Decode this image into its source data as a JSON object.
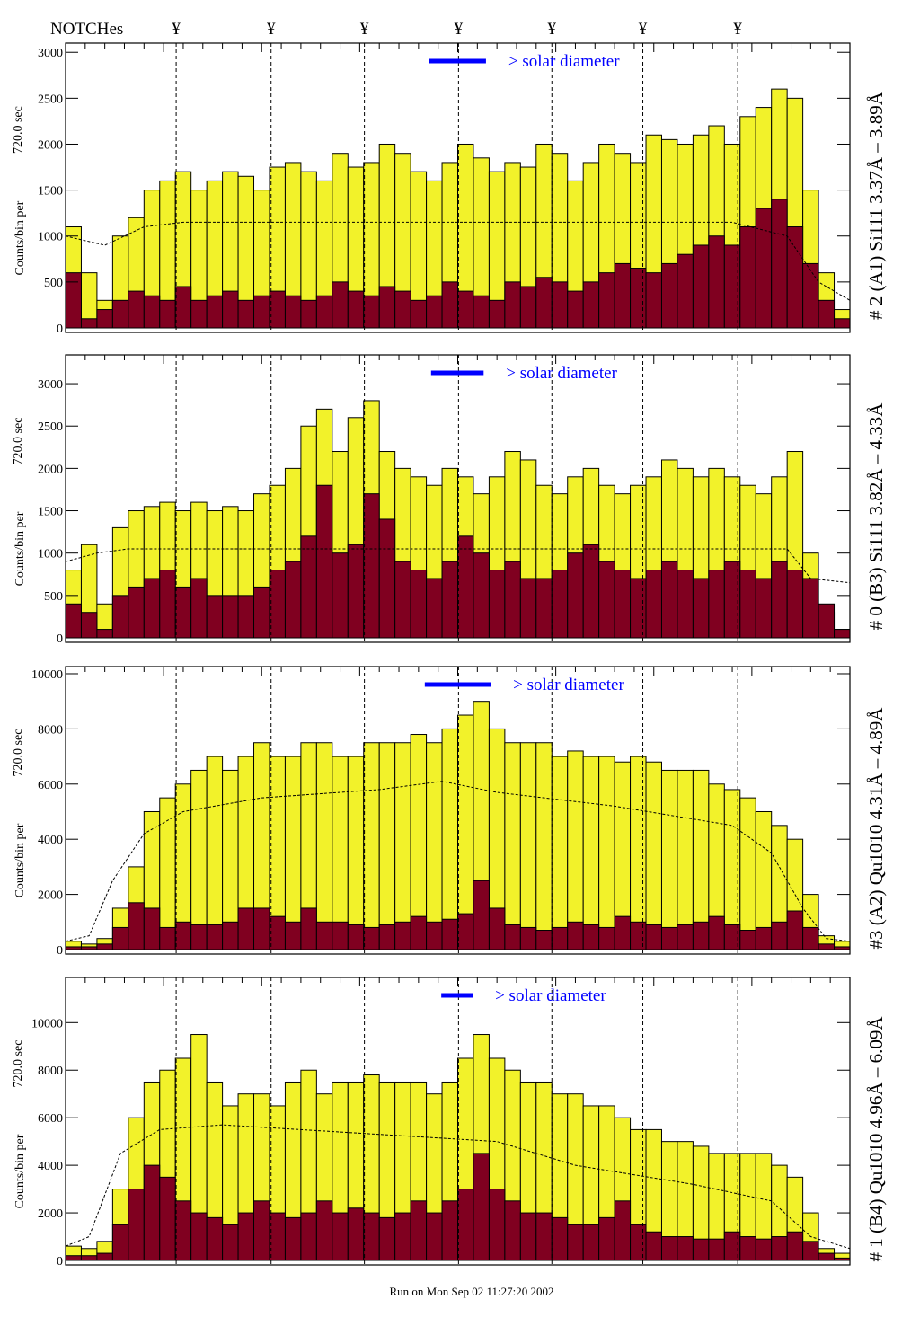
{
  "header": {
    "notches_label": "NOTCHes",
    "notch_symbol": "¥"
  },
  "footer": {
    "run_label": "Run on Mon Sep 02 11:27:20 2002"
  },
  "colors": {
    "yellow": "#f2f22a",
    "maroon": "#800020",
    "legend": "#0000ff"
  },
  "chart_data": [
    {
      "type": "bar",
      "title": "# 2 (A1) Si111  3.37Å – 3.89Å",
      "ylabel": "Counts/bin per",
      "ylabel2": "720.0 sec",
      "legend": "> solar diameter",
      "solar_diameter": [
        46.3,
        53.6
      ],
      "xlim": [
        0,
        100
      ],
      "ylim": [
        0,
        3100
      ],
      "yticks": [
        "0",
        "500",
        "1000",
        "1500",
        "2000",
        "2500",
        "3000"
      ],
      "ytick_values": [
        0,
        500,
        1000,
        1500,
        2000,
        2500,
        3000
      ],
      "notches": [
        14.1,
        26.2,
        38.1,
        50.1,
        62.0,
        73.6,
        85.7
      ],
      "series": [
        {
          "name": "total",
          "values": [
            1100,
            600,
            300,
            1000,
            1200,
            1500,
            1600,
            1700,
            1500,
            1600,
            1700,
            1650,
            1500,
            1750,
            1800,
            1700,
            1600,
            1900,
            1750,
            1800,
            2000,
            1900,
            1700,
            1600,
            1800,
            2000,
            1850,
            1700,
            1800,
            1750,
            2000,
            1900,
            1600,
            1800,
            2000,
            1900,
            1800,
            2100,
            2050,
            2000,
            2100,
            2200,
            2000,
            2300,
            2400,
            2600,
            2500,
            1500,
            600,
            200
          ]
        },
        {
          "name": "background",
          "values": [
            600,
            100,
            200,
            300,
            400,
            350,
            300,
            450,
            300,
            350,
            400,
            300,
            350,
            400,
            350,
            300,
            350,
            500,
            400,
            350,
            450,
            400,
            300,
            350,
            500,
            400,
            350,
            300,
            500,
            450,
            550,
            500,
            400,
            500,
            600,
            700,
            650,
            600,
            700,
            800,
            900,
            1000,
            900,
            1100,
            1300,
            1400,
            1100,
            700,
            300,
            100
          ]
        }
      ],
      "mean_curve": [
        [
          0,
          1000
        ],
        [
          5,
          900
        ],
        [
          10,
          1100
        ],
        [
          15,
          1150
        ],
        [
          85,
          1150
        ],
        [
          92,
          1000
        ],
        [
          96,
          500
        ],
        [
          100,
          300
        ]
      ]
    },
    {
      "type": "bar",
      "title": "# 0 (B3) Si111  3.82Å – 4.33Å",
      "ylabel": "Counts/bin per",
      "ylabel2": "720.0 sec",
      "legend": "> solar diameter",
      "solar_diameter": [
        46.6,
        53.3
      ],
      "xlim": [
        0,
        100
      ],
      "ylim": [
        0,
        3340
      ],
      "yticks": [
        "0",
        "500",
        "1000",
        "1500",
        "2000",
        "2500",
        "3000"
      ],
      "ytick_values": [
        0,
        500,
        1000,
        1500,
        2000,
        2500,
        3000
      ],
      "notches": [
        14.1,
        26.2,
        38.1,
        50.1,
        62.0,
        73.6,
        85.7
      ],
      "series": [
        {
          "name": "total",
          "values": [
            800,
            1100,
            400,
            1300,
            1500,
            1550,
            1600,
            1500,
            1600,
            1500,
            1550,
            1500,
            1700,
            1800,
            2000,
            2500,
            2700,
            2200,
            2600,
            2800,
            2200,
            2000,
            1900,
            1800,
            2000,
            1900,
            1700,
            1900,
            2200,
            2100,
            1800,
            1700,
            1900,
            2000,
            1800,
            1700,
            1800,
            1900,
            2100,
            2000,
            1900,
            2000,
            1900,
            1800,
            1700,
            1900,
            2200,
            1000,
            300,
            100
          ]
        },
        {
          "name": "background",
          "values": [
            400,
            300,
            100,
            500,
            600,
            700,
            800,
            600,
            700,
            500,
            500,
            500,
            600,
            800,
            900,
            1200,
            1800,
            1000,
            1100,
            1700,
            1400,
            900,
            800,
            700,
            900,
            1200,
            1000,
            800,
            900,
            700,
            700,
            800,
            1000,
            1100,
            900,
            800,
            700,
            800,
            900,
            800,
            700,
            800,
            900,
            800,
            700,
            900,
            800,
            700,
            400,
            100
          ]
        }
      ],
      "mean_curve": [
        [
          0,
          900
        ],
        [
          4,
          1000
        ],
        [
          8,
          1050
        ],
        [
          92,
          1050
        ],
        [
          95,
          700
        ],
        [
          100,
          650
        ]
      ]
    },
    {
      "type": "bar",
      "title": "#3 (A2) Qu1010  4.31Å – 4.89Å",
      "ylabel": "Counts/bin per",
      "ylabel2": "720.0 sec",
      "legend": "> solar diameter",
      "solar_diameter": [
        45.8,
        54.2
      ],
      "xlim": [
        0,
        100
      ],
      "ylim": [
        0,
        10260
      ],
      "yticks": [
        "0",
        "2000",
        "4000",
        "6000",
        "8000",
        "10000"
      ],
      "ytick_values": [
        0,
        2000,
        4000,
        6000,
        8000,
        10000
      ],
      "notches": [
        14.1,
        26.2,
        38.1,
        50.1,
        62.0,
        73.6,
        85.7
      ],
      "series": [
        {
          "name": "total",
          "values": [
            300,
            200,
            400,
            1500,
            3000,
            5000,
            5500,
            6000,
            6500,
            7000,
            6500,
            7000,
            7500,
            7000,
            7000,
            7500,
            7500,
            7000,
            7000,
            7500,
            7500,
            7500,
            7800,
            7500,
            8000,
            8500,
            9000,
            8000,
            7500,
            7500,
            7500,
            7000,
            7200,
            7000,
            7000,
            6800,
            7000,
            6800,
            6500,
            6500,
            6500,
            6000,
            5800,
            5500,
            5000,
            4500,
            4000,
            2000,
            500,
            300
          ]
        },
        {
          "name": "background",
          "values": [
            100,
            100,
            200,
            800,
            1700,
            1500,
            800,
            1000,
            900,
            900,
            1000,
            1500,
            1500,
            1200,
            1000,
            1500,
            1000,
            1000,
            900,
            800,
            900,
            1000,
            1200,
            1000,
            1100,
            1300,
            2500,
            1500,
            900,
            800,
            700,
            800,
            1000,
            900,
            800,
            1200,
            1000,
            900,
            800,
            900,
            1000,
            1200,
            900,
            700,
            800,
            1000,
            1400,
            800,
            200,
            100
          ]
        }
      ],
      "mean_curve": [
        [
          0,
          300
        ],
        [
          3,
          500
        ],
        [
          6,
          2500
        ],
        [
          10,
          4200
        ],
        [
          15,
          5000
        ],
        [
          25,
          5500
        ],
        [
          40,
          5800
        ],
        [
          48,
          6100
        ],
        [
          55,
          5700
        ],
        [
          70,
          5200
        ],
        [
          85,
          4500
        ],
        [
          90,
          3500
        ],
        [
          94,
          1500
        ],
        [
          97,
          400
        ],
        [
          100,
          300
        ]
      ]
    },
    {
      "type": "bar",
      "title": "# 1 (B4) Qu1010 4.96Å – 6.09Å",
      "ylabel": "Counts/bin per",
      "ylabel2": "720.0 sec",
      "legend": "> solar diameter",
      "solar_diameter": [
        47.9,
        51.9
      ],
      "xlim": [
        0,
        100
      ],
      "ylim": [
        0,
        11900
      ],
      "yticks": [
        "0",
        "2000",
        "4000",
        "6000",
        "8000",
        "10000"
      ],
      "ytick_values": [
        0,
        2000,
        4000,
        6000,
        8000,
        10000
      ],
      "notches": [
        14.1,
        26.2,
        38.1,
        50.1,
        62.0,
        73.6,
        85.7
      ],
      "series": [
        {
          "name": "total",
          "values": [
            600,
            500,
            800,
            3000,
            6000,
            7500,
            8000,
            8500,
            9500,
            7500,
            6500,
            7000,
            7000,
            6500,
            7500,
            8000,
            7000,
            7500,
            7500,
            7800,
            7500,
            7500,
            7500,
            7000,
            7500,
            8500,
            9500,
            8500,
            8000,
            7500,
            7500,
            7000,
            7000,
            6500,
            6500,
            6000,
            5500,
            5500,
            5000,
            5000,
            4800,
            4500,
            4500,
            4500,
            4500,
            4000,
            3500,
            2000,
            500,
            300
          ]
        },
        {
          "name": "background",
          "values": [
            200,
            200,
            300,
            1500,
            3000,
            4000,
            3500,
            2500,
            2000,
            1800,
            1500,
            2000,
            2500,
            2000,
            1800,
            2000,
            2500,
            2000,
            2200,
            2000,
            1800,
            2000,
            2500,
            2000,
            2500,
            3000,
            4500,
            3000,
            2500,
            2000,
            2000,
            1800,
            1500,
            1500,
            1800,
            2500,
            1500,
            1200,
            1000,
            1000,
            900,
            900,
            1200,
            1000,
            900,
            1000,
            1200,
            800,
            300,
            100
          ]
        }
      ],
      "mean_curve": [
        [
          0,
          600
        ],
        [
          3,
          1000
        ],
        [
          7,
          4500
        ],
        [
          12,
          5500
        ],
        [
          20,
          5700
        ],
        [
          40,
          5300
        ],
        [
          55,
          5000
        ],
        [
          65,
          4000
        ],
        [
          80,
          3200
        ],
        [
          90,
          2500
        ],
        [
          95,
          1000
        ],
        [
          100,
          500
        ]
      ]
    }
  ]
}
